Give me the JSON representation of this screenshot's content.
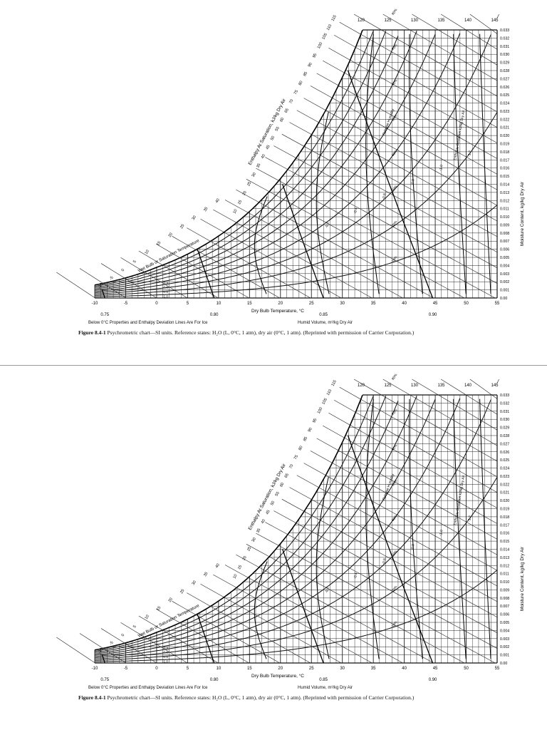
{
  "chart_data": [
    {
      "type": "psychrometric",
      "xlabel": "Dry Bulb Temperature, °C",
      "ylabel": "Moisture Content, kg/kg Dry Air",
      "x_ticks": [
        "-10",
        "-5",
        "0",
        "5",
        "10",
        "15",
        "20",
        "25",
        "30",
        "35",
        "40",
        "45",
        "50",
        "55"
      ],
      "xlim": [
        -10,
        55
      ],
      "y_ticks": [
        "0.00",
        "0.001",
        "0.002",
        "0.003",
        "0.004",
        "0.005",
        "0.006",
        "0.007",
        "0.008",
        "0.009",
        "0.010",
        "0.011",
        "0.012",
        "0.013",
        "0.014",
        "0.015",
        "0.016",
        "0.017",
        "0.018",
        "0.019",
        "0.020",
        "0.021",
        "0.022",
        "0.023",
        "0.024",
        "0.025",
        "0.026",
        "0.027",
        "0.028",
        "0.029",
        "0.030",
        "0.031",
        "0.032",
        "0.033"
      ],
      "ylim": [
        0,
        0.033
      ],
      "enthalpy_scale_label": "Enthalpy At Saturation, kJ/kg Dry Air",
      "wet_bulb_label": "Wet Bulb or Saturation Temperature",
      "wet_bulb_values": [
        "-10",
        "-5",
        "0",
        "5",
        "10",
        "15",
        "20",
        "25",
        "30",
        "35",
        "40"
      ],
      "enthalpy_values": [
        "10",
        "15",
        "20",
        "25",
        "30",
        "35",
        "40",
        "45",
        "50",
        "55",
        "60",
        "65",
        "70",
        "75",
        "80",
        "85",
        "90",
        "95",
        "100",
        "105",
        "110",
        "115"
      ],
      "top_enthalpy_values": [
        "120",
        "125",
        "130",
        "135",
        "140",
        "145"
      ],
      "humid_volume_label": "Humid Volume, m³/kg Dry Air",
      "humid_volume_values": [
        "0.75",
        "0.80",
        "0.85",
        "0.90"
      ],
      "relative_humidity_label": "Relative Humidity",
      "relative_humidity_values": [
        "10%",
        "20%",
        "30%",
        "40%",
        "50%",
        "60%",
        "70%",
        "80%",
        "90%"
      ],
      "enthalpy_deviation_label": "Enthalpy Deviation kJ/kg Dry Air",
      "enthalpy_deviation_values": [
        "-0.2",
        "-0.4",
        "-0.6",
        "-0.8",
        "-1.0",
        "-1.2"
      ],
      "ice_deviation_values": [
        "-0.4",
        "-0.6",
        "-0.8",
        "-1.0"
      ]
    }
  ],
  "footer_left": "Below 0°C Properties and Enthalpy Deviation Lines Are For Ice",
  "footer_right": "Humid Volume, m³/kg Dry Air",
  "caption_label": "Figure 8.4-1",
  "caption_text": "Psychrometric chart—SI units. Reference states: H₂O (L, 0°C, 1 atm), dry air (0°C, 1 atm). (Reprinted with permission of Carrier Corporation.)"
}
